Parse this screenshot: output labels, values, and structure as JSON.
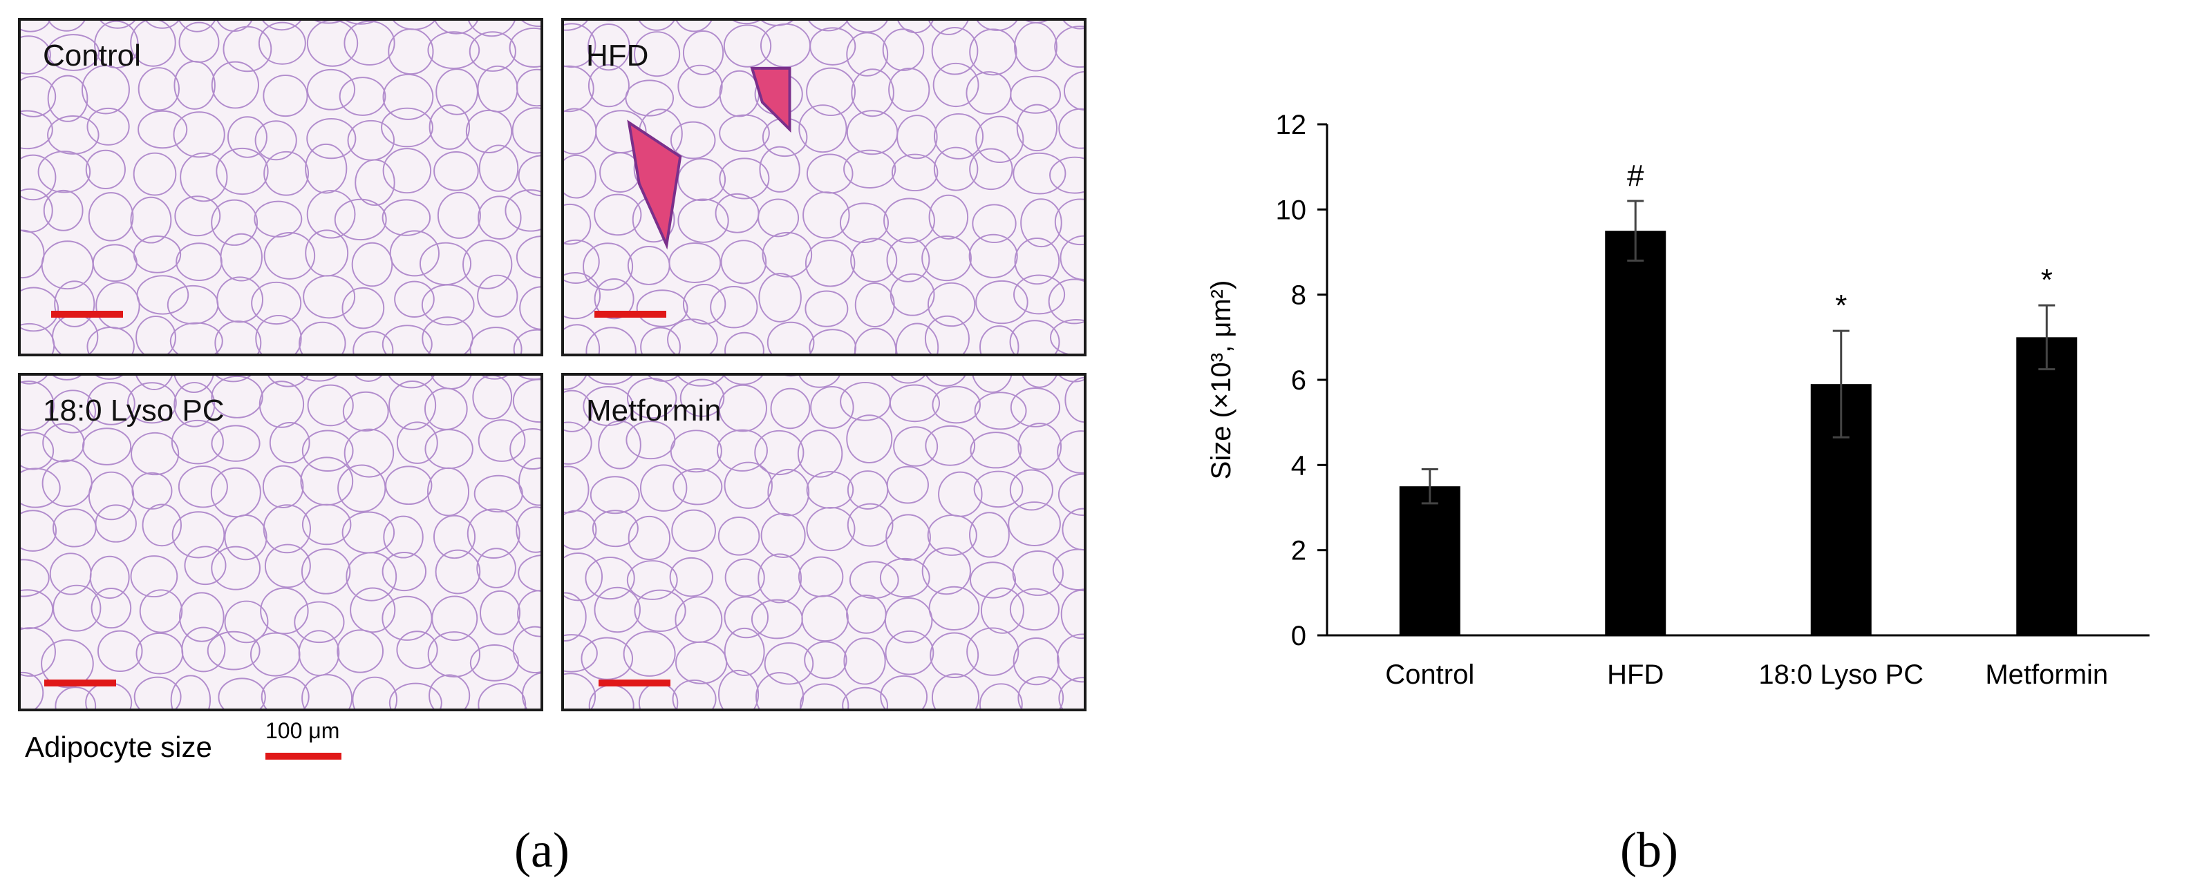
{
  "panel_a": {
    "caption": "(a)",
    "images": [
      {
        "label": "Control"
      },
      {
        "label": "HFD"
      },
      {
        "label": "18:0 Lyso PC"
      },
      {
        "label": "Metformin"
      }
    ],
    "footer_label": "Adipocyte size",
    "scale_label": "100 μm",
    "scale_color": "#e01818",
    "tissue_stroke": "#9b6cc0",
    "vessel_color": "#e0457a"
  },
  "panel_b": {
    "caption": "(b)"
  },
  "chart_data": {
    "type": "bar",
    "categories": [
      "Control",
      "HFD",
      "18:0 Lyso PC",
      "Metformin"
    ],
    "values": [
      3.5,
      9.5,
      5.9,
      7.0
    ],
    "errors": [
      0.4,
      0.7,
      1.25,
      0.75
    ],
    "annotations": [
      "",
      "#",
      "*",
      "*"
    ],
    "ylabel": "Size (×10³, μm²)",
    "ylim": [
      0,
      12
    ],
    "yticks": [
      0,
      2,
      4,
      6,
      8,
      10,
      12
    ],
    "bar_color": "#000000",
    "grid": false,
    "legend": "none"
  }
}
